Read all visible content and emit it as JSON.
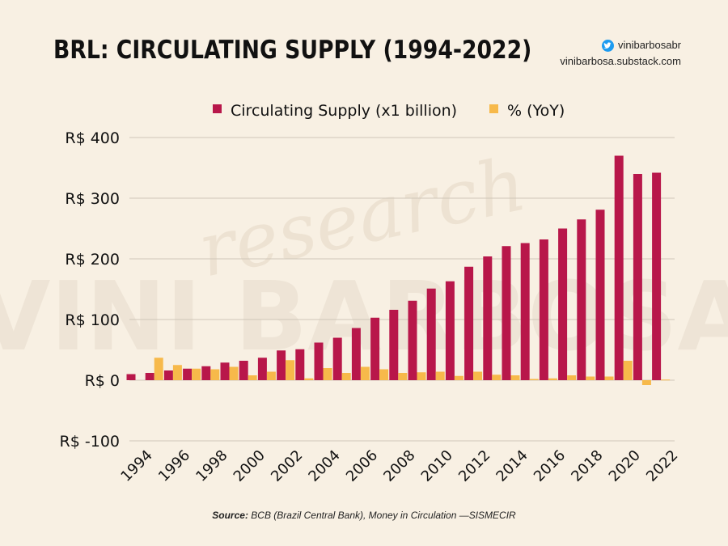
{
  "header": {
    "title": "BRL: CIRCULATING SUPPLY (1994-2022)",
    "twitter_handle": "vinibarbosabr",
    "website": "vinibarbosa.substack.com"
  },
  "watermark": {
    "line1": "research",
    "line2": "VINI BARBOSA"
  },
  "footer": {
    "source_label": "Source:",
    "source_text": " BCB (Brazil Central Bank), Money in Circulation —SISMECIR"
  },
  "colors": {
    "supply": "#b8174a",
    "yoy": "#f7b94a",
    "grid": "#cfc6b8",
    "background": "#f8f0e3"
  },
  "chart_data": {
    "type": "bar",
    "x": [
      1994,
      1995,
      1996,
      1997,
      1998,
      1999,
      2000,
      2001,
      2002,
      2003,
      2004,
      2005,
      2006,
      2007,
      2008,
      2009,
      2010,
      2011,
      2012,
      2013,
      2014,
      2015,
      2016,
      2017,
      2018,
      2019,
      2020,
      2021,
      2022
    ],
    "x_tick_labels": [
      "1994",
      "1996",
      "1998",
      "2000",
      "2002",
      "2004",
      "2006",
      "2008",
      "2010",
      "2012",
      "2014",
      "2016",
      "2018",
      "2020",
      "2022"
    ],
    "series": [
      {
        "name": "Circulating Supply (x1 billion)",
        "values": [
          10,
          12,
          16,
          19,
          23,
          29,
          32,
          37,
          49,
          51,
          62,
          70,
          86,
          103,
          116,
          131,
          151,
          163,
          187,
          204,
          221,
          226,
          232,
          250,
          265,
          281,
          370,
          340,
          342
        ]
      },
      {
        "name": "% (YoY)",
        "values": [
          null,
          37,
          25,
          19,
          18,
          22,
          8,
          14,
          33,
          3,
          20,
          12,
          22,
          18,
          12,
          13,
          14,
          7,
          14,
          9,
          8,
          2,
          3,
          8,
          6,
          6,
          32,
          -8,
          1
        ]
      }
    ],
    "ylim": [
      -100,
      400
    ],
    "y_ticks": [
      -100,
      0,
      100,
      200,
      300,
      400
    ],
    "y_tick_labels": [
      "R$ -100",
      "R$ 0",
      "R$ 100",
      "R$ 200",
      "R$ 300",
      "R$ 400"
    ],
    "grid": true,
    "legend_position": "top-center"
  }
}
